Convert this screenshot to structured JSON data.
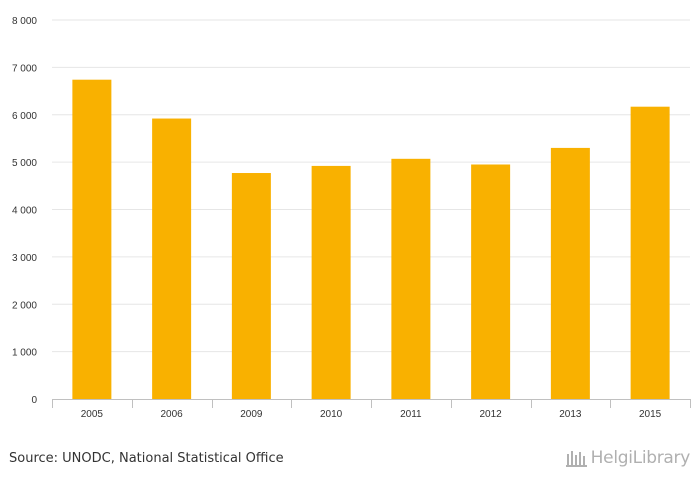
{
  "chart_data": {
    "type": "bar",
    "categories": [
      "2005",
      "2006",
      "2009",
      "2010",
      "2011",
      "2012",
      "2013",
      "2015"
    ],
    "values": [
      6740,
      5920,
      4770,
      4920,
      5070,
      4950,
      5300,
      6170
    ],
    "title": "",
    "xlabel": "",
    "ylabel": "",
    "ylim": [
      0,
      8000
    ],
    "yticks": [
      0,
      1000,
      2000,
      3000,
      4000,
      5000,
      6000,
      7000,
      8000
    ],
    "ytick_labels": [
      "0",
      "1 000",
      "2 000",
      "3 000",
      "4 000",
      "5 000",
      "6 000",
      "7 000",
      "8 000"
    ],
    "grid": true,
    "bar_color": "#f9b100"
  },
  "footer": {
    "source": "Source: UNODC, National Statistical Office",
    "logo_text": "HelgiLibrary"
  }
}
